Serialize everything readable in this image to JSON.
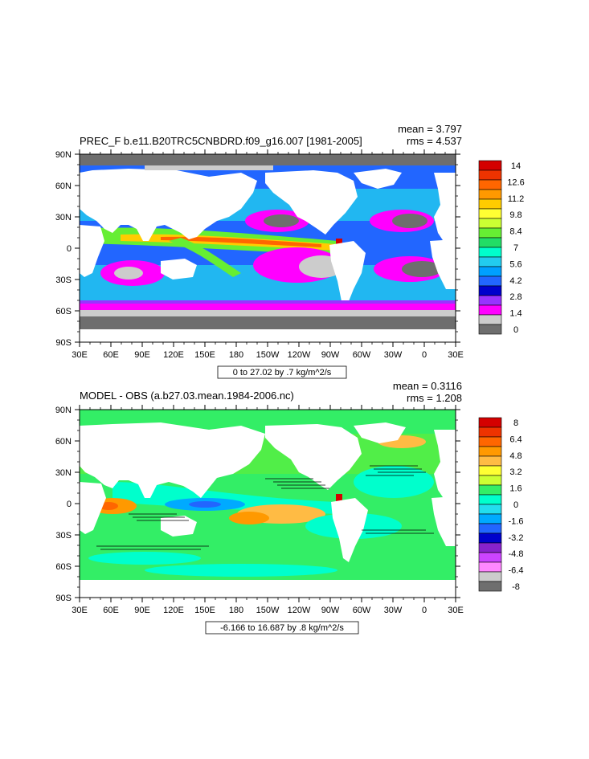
{
  "chart_data": [
    {
      "type": "heatmap",
      "title": "PREC_F b.e11.B20TRC5CNBDRD.f09_g16.007 [1981-2005]",
      "stats": {
        "mean": "mean = 3.797",
        "rms": "rms = 4.537"
      },
      "xticks": [
        "30E",
        "60E",
        "90E",
        "120E",
        "150E",
        "180",
        "150W",
        "120W",
        "90W",
        "60W",
        "30W",
        "0",
        "30E"
      ],
      "yticks": [
        "90N",
        "60N",
        "30N",
        "0",
        "30S",
        "60S",
        "90S"
      ],
      "range_note": "0 to 27.02 by .7 kg/m^2/s",
      "colorbar": {
        "labels": [
          "14",
          "12.6",
          "11.2",
          "9.8",
          "8.4",
          "7",
          "5.6",
          "4.2",
          "2.8",
          "1.4",
          "0"
        ],
        "colors": [
          "#d40000",
          "#ee3300",
          "#ff6600",
          "#ff9900",
          "#ffcc00",
          "#ffff33",
          "#ccff33",
          "#66ee33",
          "#22dd66",
          "#00ffcc",
          "#22ccee",
          "#00a0ff",
          "#2266ff",
          "#0000cc",
          "#9933ff",
          "#ff00ff",
          "#cccccc",
          "#6e6e6e"
        ]
      }
    },
    {
      "type": "heatmap",
      "title": "MODEL - OBS (a.b27.03.mean.1984-2006.nc)",
      "stats": {
        "mean": "mean = 0.3116",
        "rms": "rms = 1.208"
      },
      "xticks": [
        "30E",
        "60E",
        "90E",
        "120E",
        "150E",
        "180",
        "150W",
        "120W",
        "90W",
        "60W",
        "30W",
        "0",
        "30E"
      ],
      "yticks": [
        "90N",
        "60N",
        "30N",
        "0",
        "30S",
        "60S",
        "90S"
      ],
      "range_note": "-6.166 to 16.687 by .8 kg/m^2/s",
      "colorbar": {
        "labels": [
          "8",
          "6.4",
          "4.8",
          "3.2",
          "1.6",
          "0",
          "-1.6",
          "-3.2",
          "-4.8",
          "-6.4",
          "-8"
        ],
        "colors": [
          "#d40000",
          "#ee3300",
          "#ff6600",
          "#ff9900",
          "#ffbb44",
          "#ffff33",
          "#ccff33",
          "#33ee66",
          "#00ffcc",
          "#22ddee",
          "#00aaff",
          "#2266ff",
          "#0000cc",
          "#8822cc",
          "#cc44ff",
          "#ff88ff",
          "#cccccc",
          "#6e6e6e"
        ]
      }
    }
  ]
}
